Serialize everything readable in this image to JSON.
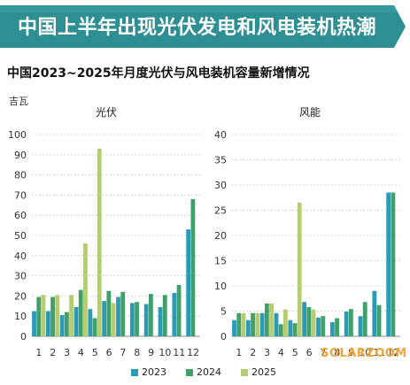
{
  "banner": {
    "title": "中国上半年出现光伏发电和风电装机热潮",
    "color": "#2e8f93"
  },
  "subtitle": "中国2023~2025年月度光伏与风电装机容量新增情况",
  "unit": "吉瓦",
  "watermark": "SOLARZOOM",
  "colors": {
    "2023": "#2b9ab8",
    "2024": "#3fa06a",
    "2025": "#b4cc73"
  },
  "chart_data": [
    {
      "type": "bar",
      "title": "光伏",
      "ylabel": "吉瓦",
      "ylim": [
        0,
        100
      ],
      "yticks": [
        0,
        10,
        20,
        30,
        40,
        50,
        60,
        70,
        80,
        90,
        100
      ],
      "categories": [
        "1",
        "2",
        "3",
        "4",
        "5",
        "6",
        "7",
        "8",
        "9",
        "10",
        "11",
        "12"
      ],
      "series": [
        {
          "name": "2023",
          "values": [
            12.5,
            12.5,
            10.5,
            14.5,
            13.5,
            17.5,
            19.5,
            16.5,
            16.0,
            14.5,
            21.5,
            53.0
          ]
        },
        {
          "name": "2024",
          "values": [
            19.5,
            19.5,
            12.0,
            23.0,
            9.0,
            22.5,
            22.0,
            17.0,
            21.0,
            20.5,
            25.5,
            68.0
          ]
        },
        {
          "name": "2025",
          "values": [
            20.5,
            20.5,
            20.5,
            46.0,
            93.0,
            16.5,
            null,
            null,
            null,
            null,
            null,
            null
          ]
        }
      ],
      "grid": true
    },
    {
      "type": "bar",
      "title": "风能",
      "ylim": [
        0,
        40
      ],
      "yticks": [
        0,
        5,
        10,
        15,
        20,
        25,
        30,
        35,
        40
      ],
      "categories": [
        "1",
        "2",
        "3",
        "4",
        "5",
        "6",
        "7",
        "8",
        "9",
        "10",
        "11",
        "12"
      ],
      "series": [
        {
          "name": "2023",
          "values": [
            3.2,
            3.2,
            4.6,
            4.6,
            3.2,
            6.8,
            3.7,
            2.8,
            4.9,
            4.0,
            9.0,
            28.5
          ]
        },
        {
          "name": "2024",
          "values": [
            4.6,
            4.6,
            6.5,
            2.4,
            2.6,
            5.8,
            4.0,
            3.6,
            5.4,
            6.8,
            6.2,
            28.5
          ]
        },
        {
          "name": "2025",
          "values": [
            4.6,
            4.6,
            6.5,
            5.3,
            26.5,
            5.3,
            null,
            null,
            null,
            null,
            null,
            null
          ]
        }
      ],
      "grid": true
    }
  ],
  "legend": [
    {
      "label": "2023",
      "key": "2023"
    },
    {
      "label": "2024",
      "key": "2024"
    },
    {
      "label": "2025",
      "key": "2025"
    }
  ]
}
